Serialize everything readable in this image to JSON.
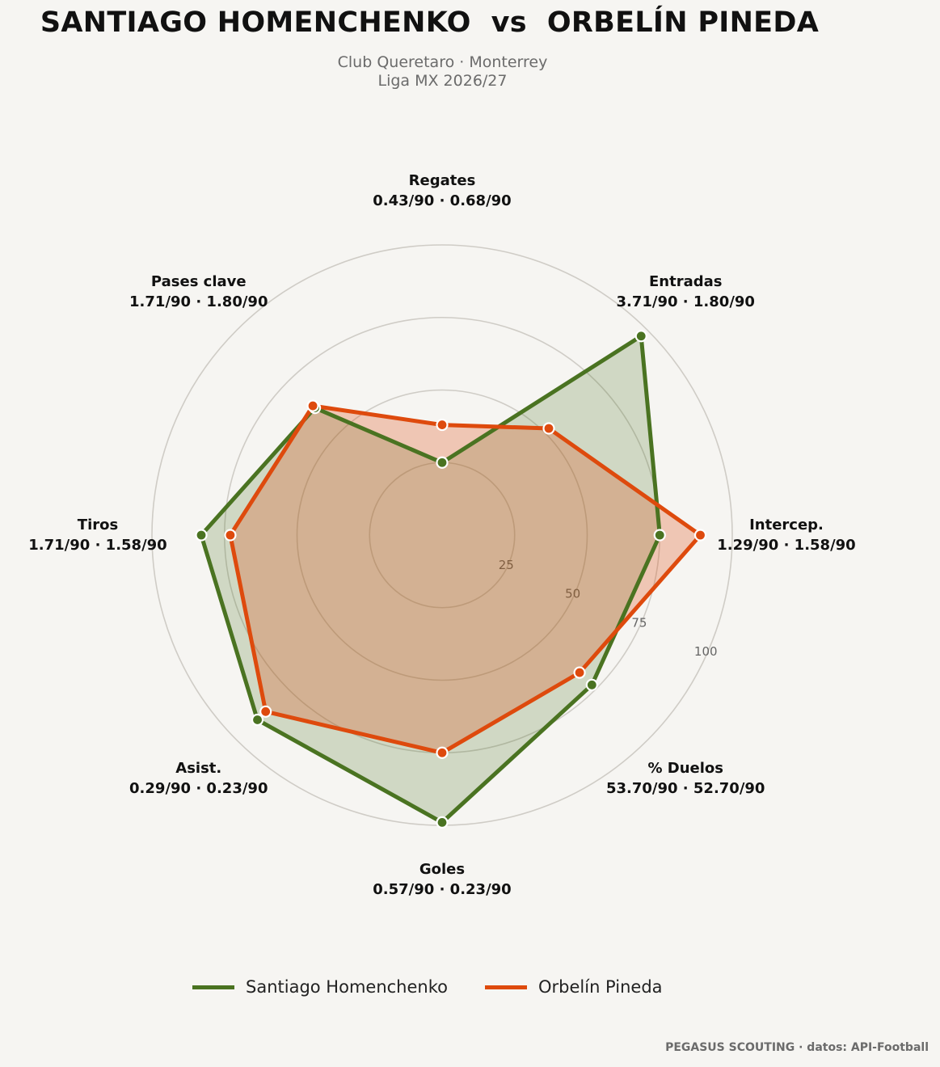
{
  "header": {
    "title": "SANTIAGO HOMENCHENKO  vs  ORBELÍN PINEDA",
    "subtitle_line1": "Club Queretaro · Monterrey",
    "subtitle_line2": "Liga MX 2026/27"
  },
  "colors": {
    "player1": "#4a7321",
    "player2": "#de4a0d",
    "fill1": "rgba(74,115,33,0.22)",
    "fill2": "rgba(222,74,13,0.27)",
    "grid": "#cfccc6",
    "background": "#f6f5f2"
  },
  "chart_data": {
    "type": "radar",
    "title": "SANTIAGO HOMENCHENKO  vs  ORBELÍN PINEDA",
    "rmax": 100,
    "ring_values": [
      25,
      50,
      75,
      100
    ],
    "ring_labels": [
      "25",
      "50",
      "75",
      "100"
    ],
    "axes": [
      {
        "label": "Regates",
        "values_text": "0.43/90 · 0.68/90"
      },
      {
        "label": "Entradas",
        "values_text": "3.71/90 · 1.80/90"
      },
      {
        "label": "Intercep.",
        "values_text": "1.29/90 · 1.58/90"
      },
      {
        "label": "% Duelos",
        "values_text": "53.70/90 · 52.70/90"
      },
      {
        "label": "Goles",
        "values_text": "0.57/90 · 0.23/90"
      },
      {
        "label": "Asist.",
        "values_text": "0.29/90 · 0.23/90"
      },
      {
        "label": "Tiros",
        "values_text": "1.71/90 · 1.58/90"
      },
      {
        "label": "Pases clave",
        "values_text": "1.71/90 · 1.80/90"
      }
    ],
    "series": [
      {
        "name": "Santiago Homenchenko",
        "values": [
          25,
          97,
          75,
          73,
          99,
          90,
          83,
          62
        ]
      },
      {
        "name": "Orbelín Pineda",
        "values": [
          38,
          52,
          89,
          67,
          75,
          86,
          73,
          63
        ]
      }
    ]
  },
  "legend": {
    "items": [
      {
        "label": "Santiago Homenchenko"
      },
      {
        "label": "Orbelín Pineda"
      }
    ]
  },
  "footer": {
    "credit": "PEGASUS SCOUTING · datos: API-Football"
  }
}
